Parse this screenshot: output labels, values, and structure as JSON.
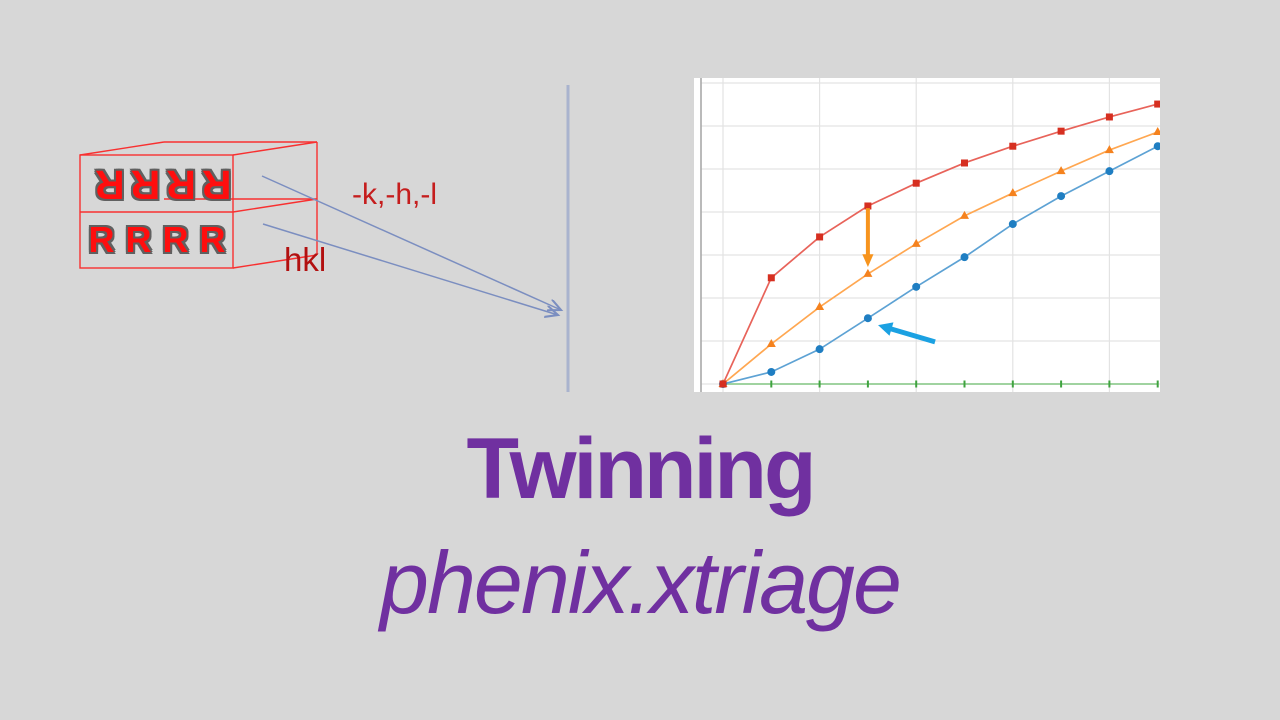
{
  "slide": {
    "background_color": "#D7D7D7",
    "title": "Twinning",
    "subtitle": "phenix.xtriage",
    "accent_color": "#7030A0"
  },
  "diagram": {
    "box_top_text": "RRRR",
    "box_top_text_orientation": "rotated-180-degrees",
    "box_bottom_text": "RRRR",
    "label_top": "-k,-h,-l",
    "label_bottom": "hkl",
    "box_wire_color": "#F83030",
    "letter_fill_color": "#FF0E0E",
    "letter_outline_color": "#606060",
    "reflection_line_color": "#7B8EC0",
    "mirror_line_color": "#A9B3CE"
  },
  "chart_data": {
    "type": "line",
    "title": "",
    "xlabel": "",
    "ylabel": "",
    "grid": true,
    "legend": "none",
    "x_range": [
      -0.06,
      0.905
    ],
    "y_range": [
      -0.025,
      0.715
    ],
    "x_gridlines": [
      0,
      0.2,
      0.4,
      0.6,
      0.8
    ],
    "y_gridlines": [
      0,
      0.1,
      0.2,
      0.3,
      0.4,
      0.5,
      0.6,
      0.7
    ],
    "x": [
      0,
      0.1,
      0.2,
      0.3,
      0.4,
      0.5,
      0.6,
      0.7,
      0.8,
      0.9
    ],
    "series": [
      {
        "name": "green-baseline",
        "marker": "tick",
        "line_color": "#94CE94",
        "marker_color": "#3FA33F",
        "values": [
          0,
          0,
          0,
          0,
          0,
          0,
          0,
          0,
          0,
          0
        ]
      },
      {
        "name": "blue-circles-curve",
        "marker": "circle",
        "line_color": "#5DA2D4",
        "marker_color": "#1F7EC2",
        "values": [
          0,
          0.028,
          0.081,
          0.153,
          0.226,
          0.295,
          0.372,
          0.437,
          0.495,
          0.553
        ]
      },
      {
        "name": "orange-triangles-curve",
        "marker": "triangle",
        "line_color": "#FFA751",
        "marker_color": "#F5821E",
        "values": [
          0,
          0.093,
          0.179,
          0.256,
          0.326,
          0.391,
          0.444,
          0.495,
          0.544,
          0.586
        ]
      },
      {
        "name": "red-squares-curve",
        "marker": "square",
        "line_color": "#E8635A",
        "marker_color": "#D62F20",
        "values": [
          0,
          0.247,
          0.342,
          0.414,
          0.467,
          0.514,
          0.553,
          0.588,
          0.621,
          0.651
        ]
      }
    ],
    "annotations": [
      {
        "id": "orange-down-arrow",
        "color": "#F7941D",
        "width": 4,
        "from": {
          "x": 0.3,
          "y": 0.409
        },
        "to": {
          "x": 0.3,
          "y": 0.272
        }
      },
      {
        "id": "blue-pointer-arrow",
        "color": "#1BA1E2",
        "width": 5,
        "from": {
          "x": 0.439,
          "y": 0.098
        },
        "to": {
          "x": 0.321,
          "y": 0.137
        }
      }
    ]
  }
}
